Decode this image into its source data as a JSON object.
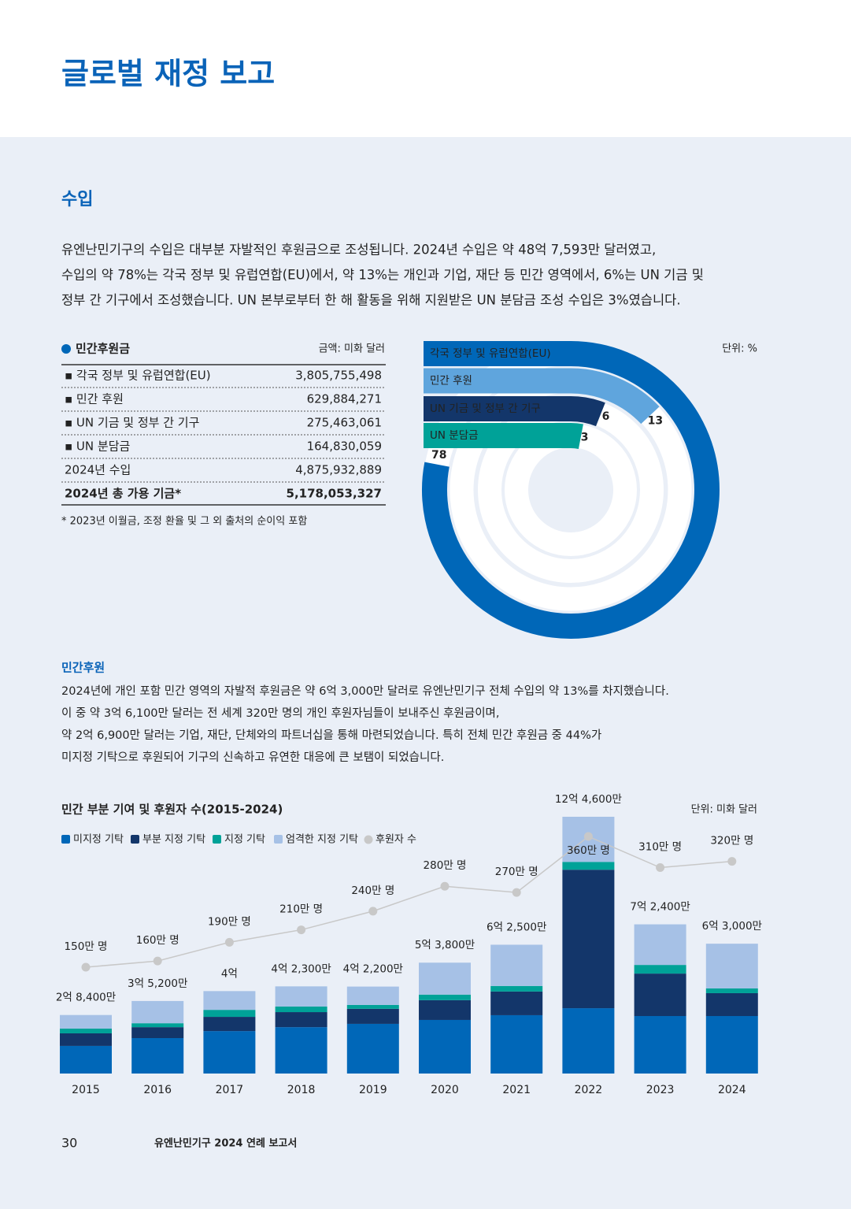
{
  "header": {
    "title": "글로벌 재정 보고"
  },
  "income": {
    "heading": "수입",
    "paragraph": [
      "유엔난민기구의 수입은 대부분 자발적인 후원금으로 조성됩니다. 2024년 수입은 약 48억 7,593만 달러였고,",
      "수입의 약 78%는 각국 정부 및 유럽연합(EU)에서, 약 13%는 개인과 기업, 재단 등 민간 영역에서, 6%는 UN 기금 및",
      "정부 간 기구에서 조성했습니다. UN 본부로부터 한 해 활동을 위해 지원받은 UN 분담금 조성 수입은 3%였습니다."
    ]
  },
  "table": {
    "title": "민간후원금",
    "unit": "금액: 미화 달러",
    "rows": [
      [
        "▪ 각국 정부 및 유럽연합(EU)",
        "3,805,755,498"
      ],
      [
        "▪ 민간 후원",
        "629,884,271"
      ],
      [
        "▪ UN 기금 및 정부 간 기구",
        "275,463,061"
      ],
      [
        "▪ UN 분담금",
        "164,830,059"
      ],
      [
        "2024년 수입",
        "4,875,932,889"
      ],
      [
        "2024년 총 가용 기금*",
        "5,178,053,327"
      ]
    ],
    "footnote": "* 2023년 이월금, 조정 환율 및 그 외 출처의 순이익 포함"
  },
  "private": {
    "heading": "민간후원",
    "paragraph": [
      "2024년에 개인 포함 민간 영역의 자발적 후원금은 약 6억 3,000만 달러로 유엔난민기구 전체 수입의 약 13%를 차지했습니다.",
      "이 중 약 3억 6,100만 달러는 전 세계 320만 명의 개인 후원자님들이 보내주신 후원금이며,",
      "약 2억 6,900만 달러는 기업, 재단, 단체와의 파트너십을 통해 마련되었습니다. 특히 전체 민간 후원금 중 44%가",
      "미지정 기탁으로 후원되어 기구의 신속하고 유연한 대응에 큰 보탬이 되었습니다."
    ]
  },
  "chart_data": [
    {
      "type": "radial-bar",
      "unit": "단위: %",
      "categories": [
        "각국 정부 및 유럽연합(EU)",
        "민간 후원",
        "UN 기금 및 정부 간 기구",
        "UN 분담금"
      ],
      "values": [
        78,
        13,
        6,
        3
      ],
      "colors": [
        "#0067b8",
        "#5fa5dd",
        "#13366a",
        "#00a298"
      ]
    },
    {
      "type": "bar",
      "stacked": true,
      "title": "민간 부분 기여 및 후원자 수(2015-2024)",
      "unit": "단위: 미화 달러",
      "categories": [
        "2015",
        "2016",
        "2017",
        "2018",
        "2019",
        "2020",
        "2021",
        "2022",
        "2023",
        "2024"
      ],
      "series": [
        {
          "name": "미지정 기탁",
          "color": "#0067b8",
          "values": [
            134000000,
            172000000,
            206000000,
            225000000,
            241000000,
            260000000,
            283000000,
            317000000,
            279000000,
            279000000
          ]
        },
        {
          "name": "부분 지정 기탁",
          "color": "#13366a",
          "values": [
            61000000,
            53000000,
            69000000,
            73000000,
            73000000,
            96000000,
            115000000,
            672000000,
            206000000,
            111000000
          ]
        },
        {
          "name": "지정 기탁",
          "color": "#00a298",
          "values": [
            23000000,
            19000000,
            34000000,
            27000000,
            19000000,
            27000000,
            27000000,
            38000000,
            42000000,
            23000000
          ]
        },
        {
          "name": "엄격한 지정 기탁",
          "color": "#a6c1e6",
          "values": [
            66000000,
            108000000,
            91000000,
            98000000,
            89000000,
            155000000,
            200000000,
            219000000,
            197000000,
            217000000
          ]
        },
        {
          "name": "후원자 수",
          "type": "line",
          "color": "#c8c8c8",
          "values": [
            1500000,
            1600000,
            1900000,
            2100000,
            2400000,
            2800000,
            2700000,
            3600000,
            3100000,
            3200000
          ],
          "value_labels": [
            "150만 명",
            "160만 명",
            "190만 명",
            "210만 명",
            "240만 명",
            "280만 명",
            "270만 명",
            "360만 명",
            "310만 명",
            "320만 명"
          ]
        }
      ],
      "totals": [
        284000000,
        352000000,
        400000000,
        423000000,
        422000000,
        538000000,
        625000000,
        1246000000,
        724000000,
        630000000
      ],
      "total_labels": [
        "2억 8,400만",
        "3억 5,200만",
        "4억",
        "4억 2,300만",
        "4억 2,200만",
        "5억 3,800만",
        "6억 2,500만",
        "12억 4,600만",
        "7억 2,400만",
        "6억 3,000만"
      ]
    }
  ],
  "footer": {
    "page": "30",
    "publication": "유엔난민기구 2024 연례 보고서"
  }
}
